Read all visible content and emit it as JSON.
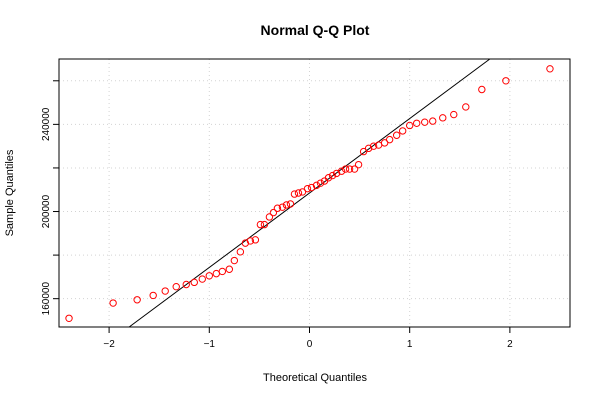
{
  "chart_data": {
    "type": "scatter",
    "title": "Normal Q-Q Plot",
    "xlabel": "Theoretical Quantiles",
    "ylabel": "Sample Quantiles",
    "xlim": [
      -2.5,
      2.6
    ],
    "ylim": [
      147000,
      270000
    ],
    "x_ticks": [
      -2,
      -1,
      0,
      1,
      2
    ],
    "x_tick_labels": [
      "−2",
      "−1",
      "0",
      "1",
      "2"
    ],
    "y_ticks": [
      160000,
      200000,
      240000
    ],
    "y_tick_labels": [
      "160000",
      "200000",
      "240000"
    ],
    "grid": true,
    "point_color": "#ff0000",
    "line_color": "#000000",
    "reference_line": [
      [
        -1.8,
        147000
      ],
      [
        1.8,
        270000
      ]
    ],
    "points": [
      [
        -2.4,
        151000
      ],
      [
        -1.96,
        158000
      ],
      [
        -1.72,
        159500
      ],
      [
        -1.56,
        161500
      ],
      [
        -1.44,
        163500
      ],
      [
        -1.33,
        165500
      ],
      [
        -1.23,
        166500
      ],
      [
        -1.15,
        167500
      ],
      [
        -1.07,
        169000
      ],
      [
        -1.0,
        170500
      ],
      [
        -0.93,
        171500
      ],
      [
        -0.87,
        172500
      ],
      [
        -0.8,
        173500
      ],
      [
        -0.75,
        177500
      ],
      [
        -0.69,
        181500
      ],
      [
        -0.64,
        185500
      ],
      [
        -0.59,
        186500
      ],
      [
        -0.54,
        187000
      ],
      [
        -0.49,
        194000
      ],
      [
        -0.45,
        194000
      ],
      [
        -0.4,
        197500
      ],
      [
        -0.36,
        199500
      ],
      [
        -0.32,
        201500
      ],
      [
        -0.27,
        202000
      ],
      [
        -0.23,
        203000
      ],
      [
        -0.19,
        203500
      ],
      [
        -0.15,
        208000
      ],
      [
        -0.11,
        208500
      ],
      [
        -0.07,
        209000
      ],
      [
        -0.02,
        210500
      ],
      [
        0.02,
        211000
      ],
      [
        0.07,
        212000
      ],
      [
        0.11,
        213000
      ],
      [
        0.15,
        214000
      ],
      [
        0.19,
        215500
      ],
      [
        0.23,
        216500
      ],
      [
        0.27,
        217500
      ],
      [
        0.32,
        218500
      ],
      [
        0.36,
        219500
      ],
      [
        0.4,
        219500
      ],
      [
        0.45,
        219500
      ],
      [
        0.49,
        221500
      ],
      [
        0.54,
        227500
      ],
      [
        0.59,
        229000
      ],
      [
        0.64,
        230000
      ],
      [
        0.69,
        230500
      ],
      [
        0.75,
        231500
      ],
      [
        0.8,
        233000
      ],
      [
        0.87,
        235000
      ],
      [
        0.93,
        237000
      ],
      [
        1.0,
        239500
      ],
      [
        1.07,
        240500
      ],
      [
        1.15,
        241000
      ],
      [
        1.23,
        241500
      ],
      [
        1.33,
        243000
      ],
      [
        1.44,
        244500
      ],
      [
        1.56,
        248000
      ],
      [
        1.72,
        256000
      ],
      [
        1.96,
        260000
      ],
      [
        2.4,
        265500
      ]
    ]
  }
}
